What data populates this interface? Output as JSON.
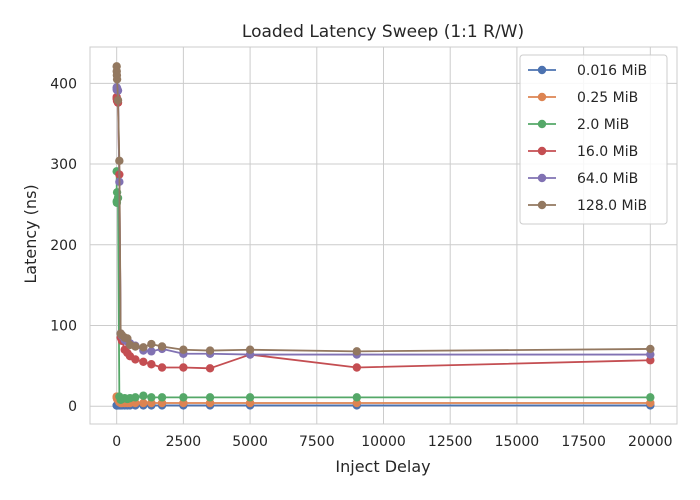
{
  "chart_data": {
    "type": "line",
    "title": "Loaded Latency Sweep (1:1 R/W)",
    "xlabel": "Inject Delay",
    "ylabel": "Latency (ns)",
    "xlim": [
      -1000,
      21000
    ],
    "ylim": [
      -22,
      445
    ],
    "xticks": [
      0,
      2500,
      5000,
      7500,
      10000,
      12500,
      15000,
      17500,
      20000
    ],
    "yticks": [
      0,
      100,
      200,
      300,
      400
    ],
    "grid": true,
    "legend_position": "top-right",
    "x": [
      0,
      2,
      8,
      15,
      50,
      100,
      150,
      200,
      300,
      400,
      500,
      700,
      1000,
      1300,
      1700,
      2500,
      3500,
      5000,
      9000,
      20000
    ],
    "series": [
      {
        "name": "0.016 MiB",
        "color": "#4c72b0",
        "values": [
          1,
          1,
          1,
          1,
          1,
          1,
          1,
          1,
          1,
          1,
          1,
          1,
          1,
          1,
          1,
          1,
          1,
          1,
          1,
          1
        ]
      },
      {
        "name": "0.25 MiB",
        "color": "#dd8452",
        "values": [
          12,
          11,
          10,
          9,
          8,
          5,
          4,
          4,
          4,
          4,
          4,
          4,
          4,
          4,
          4,
          4,
          4,
          4,
          4,
          4
        ]
      },
      {
        "name": "2.0 MiB",
        "color": "#55a868",
        "values": [
          291,
          254,
          252,
          265,
          258,
          12,
          8,
          9,
          10,
          9,
          10,
          11,
          13,
          11,
          11,
          11,
          11,
          11,
          11,
          11
        ]
      },
      {
        "name": "16.0 MiB",
        "color": "#c44e52",
        "values": [
          383,
          381,
          380,
          378,
          376,
          287,
          85,
          81,
          70,
          66,
          62,
          58,
          55,
          52,
          48,
          48,
          47,
          64,
          48,
          57
        ]
      },
      {
        "name": "64.0 MiB",
        "color": "#8172b3",
        "values": [
          395,
          392,
          393,
          394,
          391,
          278,
          90,
          87,
          82,
          80,
          78,
          75,
          69,
          68,
          71,
          65,
          65,
          64,
          64,
          64
        ]
      },
      {
        "name": "128.0 MiB",
        "color": "#937860",
        "values": [
          421,
          415,
          410,
          405,
          379,
          304,
          90,
          88,
          85,
          84,
          76,
          74,
          73,
          77,
          74,
          70,
          69,
          70,
          68,
          71
        ]
      }
    ]
  }
}
